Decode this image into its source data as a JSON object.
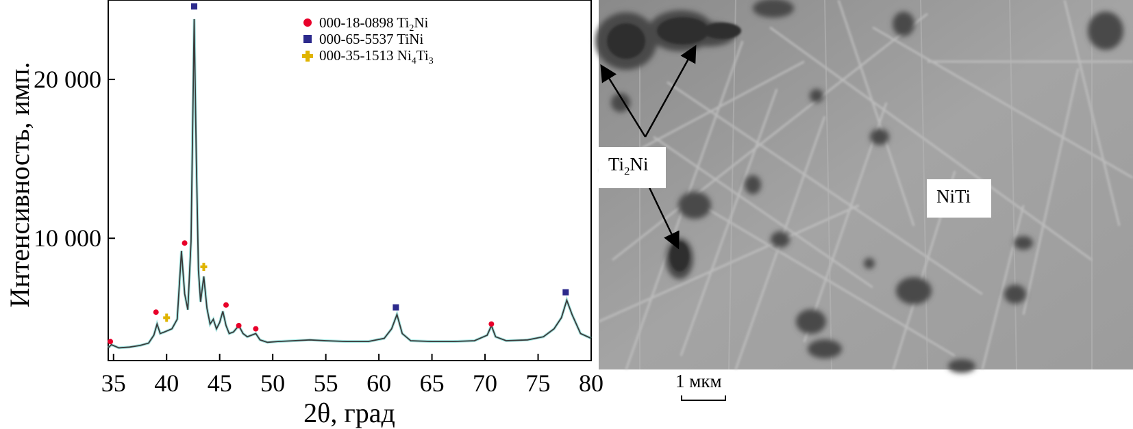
{
  "chart_data": {
    "type": "line",
    "title": "",
    "xlabel": "2θ, град",
    "ylabel": "Интенсивность, имп.",
    "xlim": [
      34.5,
      80
    ],
    "ylim": [
      2300,
      25000
    ],
    "xticks": [
      35,
      40,
      45,
      50,
      55,
      60,
      65,
      70,
      75,
      80
    ],
    "xtick_labels": [
      "35",
      "40",
      "45",
      "50",
      "55",
      "60",
      "65",
      "70",
      "75",
      "80"
    ],
    "yticks": [
      10000,
      20000
    ],
    "ytick_labels": [
      "10 000",
      "20 000"
    ],
    "legend_position": "top-center",
    "series": [
      {
        "x": [
          34.5,
          34.8,
          35.5,
          36.5,
          37.5,
          38.3,
          38.8,
          39.1,
          39.4,
          39.8,
          40.5,
          41.0,
          41.4,
          41.7,
          42.0,
          42.3,
          42.6,
          42.8,
          43.0,
          43.2,
          43.5,
          43.8,
          44.1,
          44.4,
          44.7,
          45.0,
          45.3,
          45.6,
          45.9,
          46.3,
          46.8,
          47.2,
          47.6,
          48.0,
          48.4,
          48.8,
          49.5,
          50.5,
          52.0,
          53.5,
          55.0,
          57.0,
          59.0,
          60.5,
          61.2,
          61.7,
          62.2,
          63.0,
          65.0,
          67.0,
          69.0,
          70.2,
          70.6,
          71.0,
          72.0,
          74.0,
          75.5,
          76.5,
          77.2,
          77.7,
          78.2,
          79.0,
          80.0
        ],
        "y": [
          3100,
          3300,
          3100,
          3150,
          3250,
          3400,
          3900,
          4600,
          4000,
          4100,
          4300,
          4900,
          9200,
          6500,
          5500,
          9800,
          23800,
          15000,
          8000,
          6000,
          7600,
          5600,
          4600,
          4900,
          4300,
          4700,
          5400,
          4500,
          4000,
          4100,
          4500,
          4000,
          3800,
          3900,
          4000,
          3600,
          3450,
          3500,
          3550,
          3600,
          3550,
          3500,
          3500,
          3700,
          4300,
          5200,
          4000,
          3550,
          3500,
          3500,
          3550,
          3900,
          4500,
          3800,
          3550,
          3600,
          3800,
          4300,
          5000,
          6100,
          5200,
          4000,
          3700
        ]
      }
    ],
    "markers": [
      {
        "phase": "Ti2Ni",
        "points": [
          [
            34.7,
            3500
          ],
          [
            39.0,
            5350
          ],
          [
            41.7,
            9700
          ],
          [
            45.6,
            5800
          ],
          [
            46.8,
            4500
          ],
          [
            48.4,
            4300
          ],
          [
            70.6,
            4600
          ]
        ]
      },
      {
        "phase": "TiNi",
        "points": [
          [
            42.6,
            24600
          ],
          [
            61.6,
            5650
          ],
          [
            77.6,
            6600
          ]
        ]
      },
      {
        "phase": "Ni4Ti3",
        "points": [
          [
            40.0,
            5000
          ],
          [
            43.5,
            8200
          ]
        ]
      }
    ]
  },
  "legend": [
    {
      "code": "000-18-0898",
      "formula": "Ti",
      "sub1": "2",
      "formula2": "Ni",
      "sub2": "",
      "color": "#e8002a"
    },
    {
      "code": "000-65-5537",
      "formula": "TiNi",
      "sub1": "",
      "formula2": "",
      "sub2": "",
      "color": "#2c2a8c"
    },
    {
      "code": "000-35-1513",
      "formula": "Ni",
      "sub1": "4",
      "formula2": "Ti",
      "sub2": "3",
      "color": "#e0b400"
    }
  ],
  "image": {
    "label_ti2ni_main": "Ti",
    "label_ti2ni_sub": "2",
    "label_ti2ni_end": "Ni",
    "label_niti": "NiTi",
    "scale_label": "1 мкм"
  },
  "colors": {
    "line": "#3a3a3a",
    "ti2ni": "#e8002a",
    "tini": "#2c2a8c",
    "ni4ti3": "#e0b400",
    "highlight": "#5fd0c8"
  }
}
